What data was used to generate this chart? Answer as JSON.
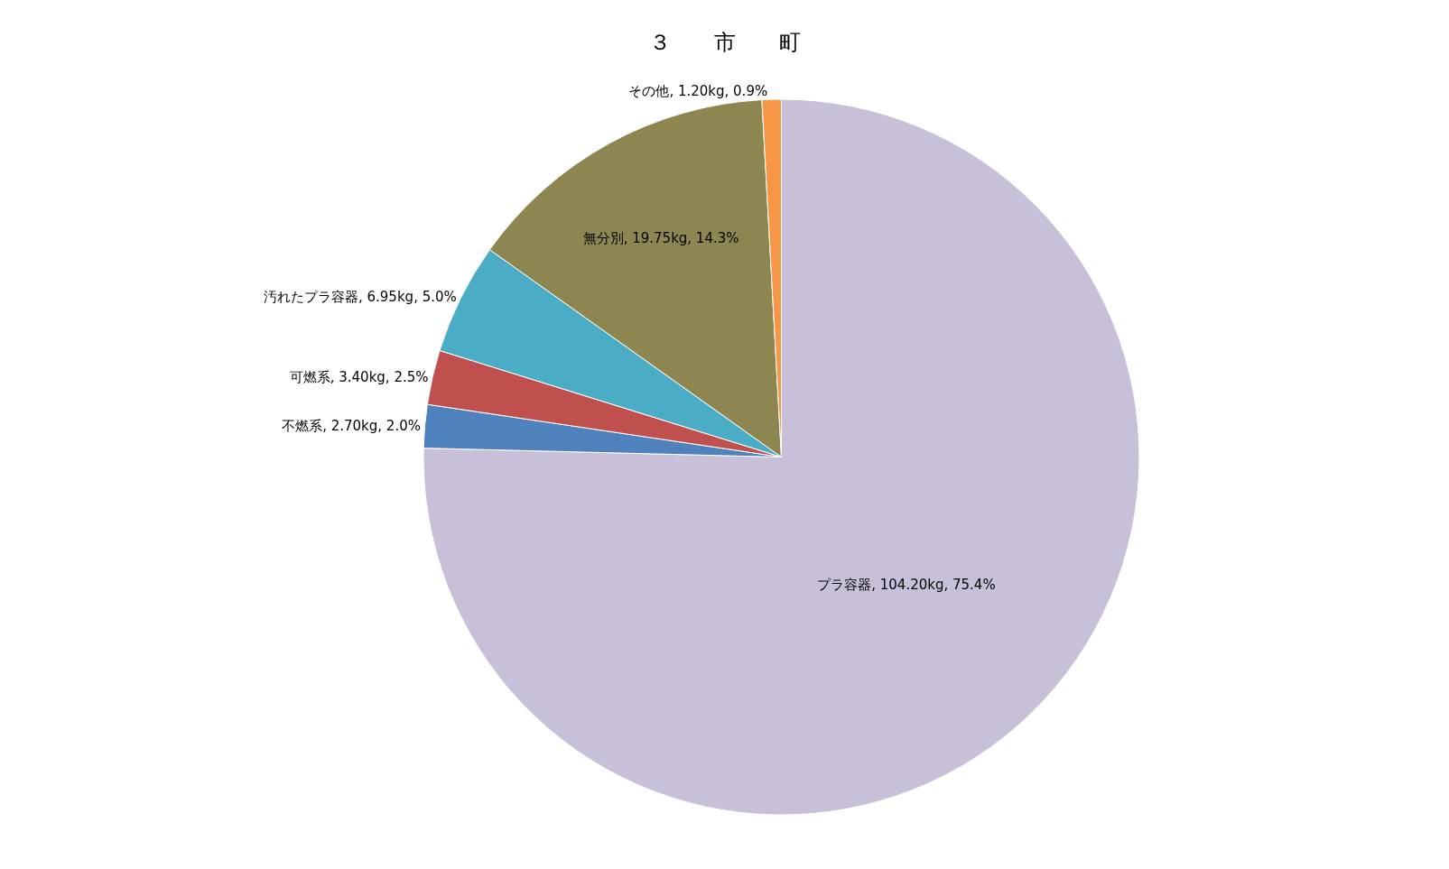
{
  "chart_data": {
    "type": "pie",
    "title": "３　　市　　町",
    "categories": [
      "プラ容器",
      "不燃系",
      "可燃系",
      "汚れたプラ容器",
      "無分別",
      "その他"
    ],
    "values": [
      104.2,
      2.7,
      3.4,
      6.95,
      19.75,
      1.2
    ],
    "value_labels": [
      "104.20kg, 75.4%",
      "2.70kg, 2.0%",
      "3.40kg, 2.5%",
      "6.95kg, 5.0%",
      "19.75kg, 14.3%",
      "1.20kg, 0.9%"
    ],
    "colors": [
      "#c8bfd8",
      "#4f81bd",
      "#c0504d",
      "#4bacc6",
      "#8e8650",
      "#f79646"
    ],
    "legend": false
  }
}
